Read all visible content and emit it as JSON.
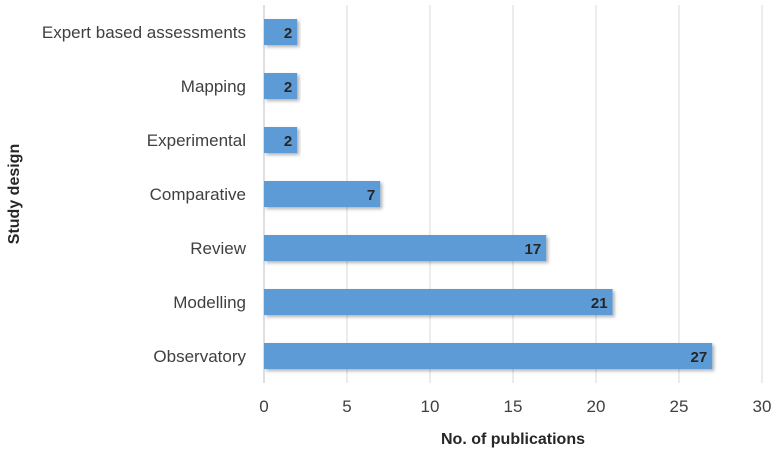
{
  "chart_data": {
    "type": "bar",
    "orientation": "horizontal",
    "categories": [
      "Expert based assessments",
      "Mapping",
      "Experimental",
      "Comparative",
      "Review",
      "Modelling",
      "Observatory"
    ],
    "values": [
      2,
      2,
      2,
      7,
      17,
      21,
      27
    ],
    "xlabel": "No. of publications",
    "ylabel": "Study design",
    "xlim": [
      0,
      30
    ],
    "xticks": [
      0,
      5,
      10,
      15,
      20,
      25,
      30
    ],
    "grid": "vertical",
    "legend": "none",
    "bar_color": "#5b9bd5",
    "data_labels": true
  }
}
